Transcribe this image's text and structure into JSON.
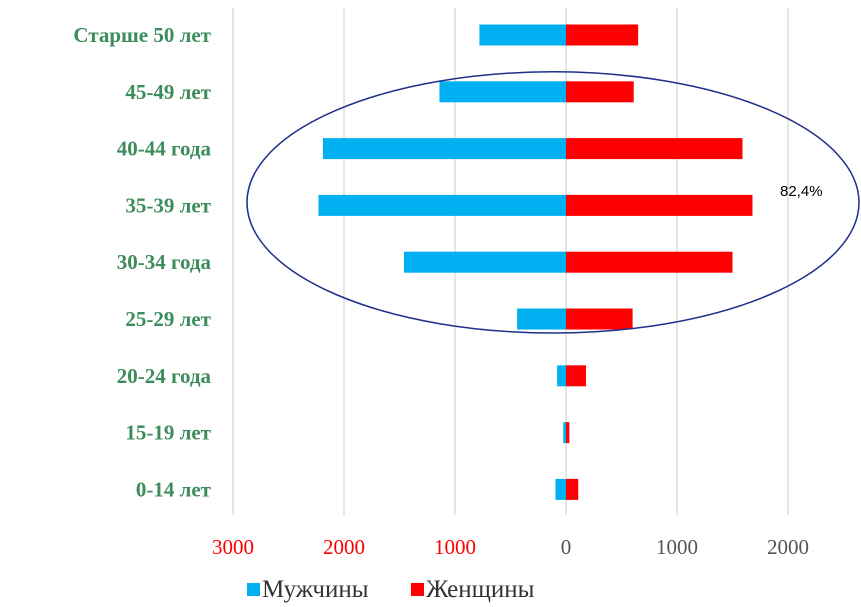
{
  "chart_data": {
    "type": "bar",
    "orientation": "horizontal",
    "layout": "population-pyramid",
    "categories": [
      "Старше 50 лет",
      "45-49 лет",
      "40-44 года",
      "35-39 лет",
      "30-34 года",
      "25-29 лет",
      "20-24 года",
      "15-19 лет",
      "0-14 лет"
    ],
    "series": [
      {
        "name": "Мужчины",
        "color": "#00b0f0",
        "direction": "left",
        "values": [
          780,
          1140,
          2190,
          2230,
          1460,
          440,
          80,
          25,
          95
        ]
      },
      {
        "name": "Женщины",
        "color": "#ff0000",
        "direction": "right",
        "values": [
          650,
          610,
          1590,
          1680,
          1500,
          600,
          180,
          30,
          110
        ]
      }
    ],
    "x_ticks": [
      {
        "value": -3000,
        "label": "3000",
        "color": "#ff0000"
      },
      {
        "value": -2000,
        "label": "2000",
        "color": "#ff0000"
      },
      {
        "value": -1000,
        "label": "1000",
        "color": "#ff0000"
      },
      {
        "value": 0,
        "label": "0",
        "color": "#555555"
      },
      {
        "value": 1000,
        "label": "1000",
        "color": "#555555"
      },
      {
        "value": 2000,
        "label": "2000",
        "color": "#555555"
      }
    ],
    "xlim": [
      -3000,
      2700
    ],
    "category_label_color": "#3c8c5c",
    "grid": "vertical",
    "legend_position": "bottom",
    "annotation": {
      "text": "82,4%",
      "covers_categories": [
        "45-49 лет",
        "40-44 года",
        "35-39 лет",
        "30-34 года",
        "25-29 лет"
      ],
      "shape": "ellipse",
      "stroke_color": "#1f2f8a"
    },
    "title": "",
    "xlabel": "",
    "ylabel": ""
  }
}
